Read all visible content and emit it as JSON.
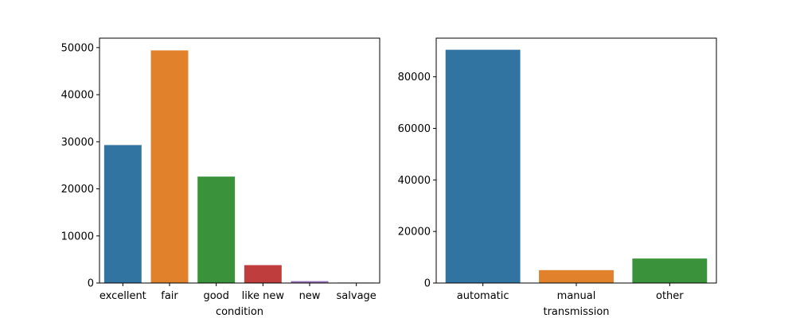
{
  "chart_data": [
    {
      "type": "bar",
      "title": "",
      "xlabel": "condition",
      "ylabel": "",
      "categories": [
        "excellent",
        "fair",
        "good",
        "like new",
        "new",
        "salvage"
      ],
      "values": [
        29300,
        49400,
        22600,
        3800,
        400,
        100
      ],
      "colors": [
        "#3274a1",
        "#e1812c",
        "#3a923a",
        "#c03d3e",
        "#9372b2",
        "#845b53"
      ],
      "ylim": [
        0,
        52000
      ],
      "yticks": [
        0,
        10000,
        20000,
        30000,
        40000,
        50000
      ],
      "ytick_labels": [
        "0",
        "10000",
        "20000",
        "30000",
        "40000",
        "50000"
      ],
      "grid": false,
      "legend": "none"
    },
    {
      "type": "bar",
      "title": "",
      "xlabel": "transmission",
      "ylabel": "",
      "categories": [
        "automatic",
        "manual",
        "other"
      ],
      "values": [
        90500,
        5000,
        9500
      ],
      "colors": [
        "#3274a1",
        "#e1812c",
        "#3a923a"
      ],
      "ylim": [
        0,
        95000
      ],
      "yticks": [
        0,
        20000,
        40000,
        60000,
        80000
      ],
      "ytick_labels": [
        "0",
        "20000",
        "40000",
        "60000",
        "80000"
      ],
      "grid": false,
      "legend": "none"
    }
  ]
}
